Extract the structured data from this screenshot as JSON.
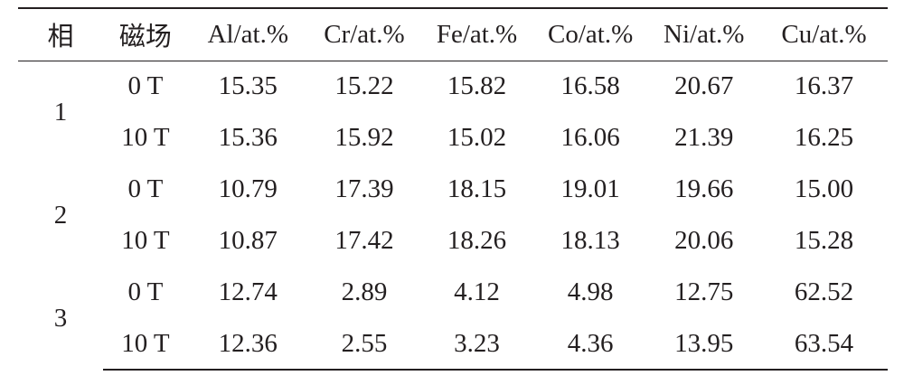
{
  "table": {
    "headers": [
      "相",
      "磁场",
      "Al/at.%",
      "Cr/at.%",
      "Fe/at.%",
      "Co/at.%",
      "Ni/at.%",
      "Cu/at.%"
    ],
    "groups": [
      {
        "phase": "1",
        "rows": [
          {
            "field": "0 T",
            "values": [
              "15.35",
              "15.22",
              "15.82",
              "16.58",
              "20.67",
              "16.37"
            ]
          },
          {
            "field": "10 T",
            "values": [
              "15.36",
              "15.92",
              "15.02",
              "16.06",
              "21.39",
              "16.25"
            ]
          }
        ]
      },
      {
        "phase": "2",
        "rows": [
          {
            "field": "0 T",
            "values": [
              "10.79",
              "17.39",
              "18.15",
              "19.01",
              "19.66",
              "15.00"
            ]
          },
          {
            "field": "10 T",
            "values": [
              "10.87",
              "17.42",
              "18.26",
              "18.13",
              "20.06",
              "15.28"
            ]
          }
        ]
      },
      {
        "phase": "3",
        "rows": [
          {
            "field": "0 T",
            "values": [
              "12.74",
              "2.89",
              "4.12",
              "4.98",
              "12.75",
              "62.52"
            ]
          },
          {
            "field": "10 T",
            "values": [
              "12.36",
              "2.55",
              "3.23",
              "4.36",
              "13.95",
              "63.54"
            ]
          }
        ]
      }
    ]
  }
}
